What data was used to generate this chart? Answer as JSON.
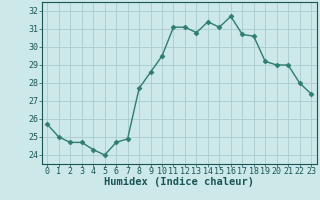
{
  "x": [
    0,
    1,
    2,
    3,
    4,
    5,
    6,
    7,
    8,
    9,
    10,
    11,
    12,
    13,
    14,
    15,
    16,
    17,
    18,
    19,
    20,
    21,
    22,
    23
  ],
  "y": [
    25.7,
    25.0,
    24.7,
    24.7,
    24.3,
    24.0,
    24.7,
    24.9,
    27.7,
    28.6,
    29.5,
    31.1,
    31.1,
    30.8,
    31.4,
    31.1,
    31.7,
    30.7,
    30.6,
    29.2,
    29.0,
    29.0,
    28.0,
    27.4
  ],
  "line_color": "#2e7d6e",
  "marker": "D",
  "markersize": 2.5,
  "linewidth": 1.0,
  "background_color": "#cce8e8",
  "grid_color": "#aacccc",
  "xlabel": "Humidex (Indice chaleur)",
  "xlabel_fontsize": 7.5,
  "ylim": [
    23.5,
    32.5
  ],
  "yticks": [
    24,
    25,
    26,
    27,
    28,
    29,
    30,
    31,
    32
  ],
  "xticks": [
    0,
    1,
    2,
    3,
    4,
    5,
    6,
    7,
    8,
    9,
    10,
    11,
    12,
    13,
    14,
    15,
    16,
    17,
    18,
    19,
    20,
    21,
    22,
    23
  ],
  "tick_fontsize": 6.0,
  "tick_color": "#1a5555"
}
